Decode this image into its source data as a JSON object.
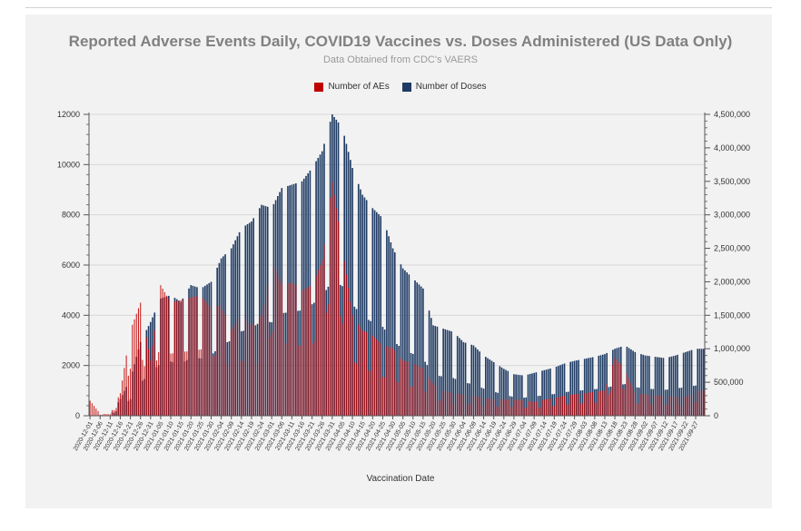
{
  "chart_data": {
    "type": "bar",
    "title": "Reported Adverse Events Daily, COVID19 Vaccines vs. Doses Administered (US Data Only)",
    "subtitle": "Data Obtained from CDC's VAERS",
    "xlabel": "Vaccination Date",
    "ylabel_left": "",
    "ylabel_right": "",
    "legend_position": "top-center",
    "grid": true,
    "y_left": {
      "min": 0,
      "max": 12000,
      "ticks": [
        "0",
        "2000",
        "4000",
        "6000",
        "8000",
        "10000",
        "12000"
      ]
    },
    "y_right": {
      "min": 0,
      "max": 4500000,
      "ticks": [
        "0",
        "500,000",
        "1,000,000",
        "1,500,000",
        "2,000,000",
        "2,500,000",
        "3,000,000",
        "3,500,000",
        "4,000,000",
        "4,500,000"
      ]
    },
    "x_tick_labels": [
      "2020-12-01",
      "2020-12-06",
      "2020-12-11",
      "2020-12-16",
      "2020-12-21",
      "2020-12-26",
      "2020-12-31",
      "2021-01-05",
      "2021-01-10",
      "2021-01-15",
      "2021-01-20",
      "2021-01-25",
      "2021-01-30",
      "2021-02-04",
      "2021-02-09",
      "2021-02-14",
      "2021-02-19",
      "2021-02-24",
      "2021-03-01",
      "2021-03-06",
      "2021-03-11",
      "2021-03-16",
      "2021-03-21",
      "2021-03-26",
      "2021-03-31",
      "2021-04-05",
      "2021-04-10",
      "2021-04-15",
      "2021-04-20",
      "2021-04-25",
      "2021-04-30",
      "2021-05-05",
      "2021-05-10",
      "2021-05-15",
      "2021-05-20",
      "2021-05-25",
      "2021-05-30",
      "2021-06-04",
      "2021-06-09",
      "2021-06-14",
      "2021-06-19",
      "2021-06-24",
      "2021-06-29",
      "2021-07-04",
      "2021-07-09",
      "2021-07-14",
      "2021-07-19",
      "2021-07-24",
      "2021-07-29",
      "2021-08-03",
      "2021-08-08",
      "2021-08-13",
      "2021-08-18",
      "2021-08-23",
      "2021-08-28",
      "2021-09-02",
      "2021-09-07",
      "2021-09-12",
      "2021-09-17",
      "2021-09-22",
      "2021-09-27"
    ],
    "series": [
      {
        "name": "Number of AEs",
        "color": "#c00000",
        "axis": "left",
        "values_by_5day": [
          600,
          80,
          60,
          900,
          3400,
          4500,
          2200,
          5200,
          4500,
          4600,
          4700,
          4800,
          4300,
          4400,
          3400,
          4000,
          3600,
          4000,
          6100,
          5200,
          5300,
          5000,
          5200,
          6200,
          9300,
          6700,
          4000,
          3400,
          3200,
          2800,
          2700,
          2200,
          2100,
          1900,
          1300,
          1000,
          900,
          850,
          800,
          700,
          650,
          650,
          650,
          600,
          550,
          650,
          700,
          800,
          850,
          900,
          950,
          1000,
          2300,
          1900,
          900,
          850,
          800,
          800,
          750,
          750,
          1000
        ]
      },
      {
        "name": "Number of Doses",
        "color": "#1f3b64",
        "axis": "right",
        "values_by_5day": [
          0,
          0,
          0,
          250000,
          550000,
          1100000,
          1400000,
          1750000,
          1800000,
          1700000,
          1950000,
          1900000,
          2000000,
          2350000,
          2500000,
          2800000,
          2900000,
          3150000,
          3100000,
          3400000,
          3450000,
          3500000,
          3700000,
          3950000,
          4500000,
          4300000,
          3700000,
          3300000,
          3100000,
          2950000,
          2500000,
          2200000,
          2050000,
          1900000,
          1350000,
          1300000,
          1250000,
          1100000,
          1050000,
          900000,
          800000,
          700000,
          620000,
          600000,
          640000,
          680000,
          720000,
          780000,
          820000,
          850000,
          880000,
          920000,
          1000000,
          1050000,
          950000,
          900000,
          880000,
          860000,
          900000,
          950000,
          1000000
        ]
      }
    ]
  },
  "legend": {
    "aes_label": "Number of AEs",
    "doses_label": "Number of Doses",
    "aes_color": "#c00000",
    "doses_color": "#1f3b64"
  }
}
